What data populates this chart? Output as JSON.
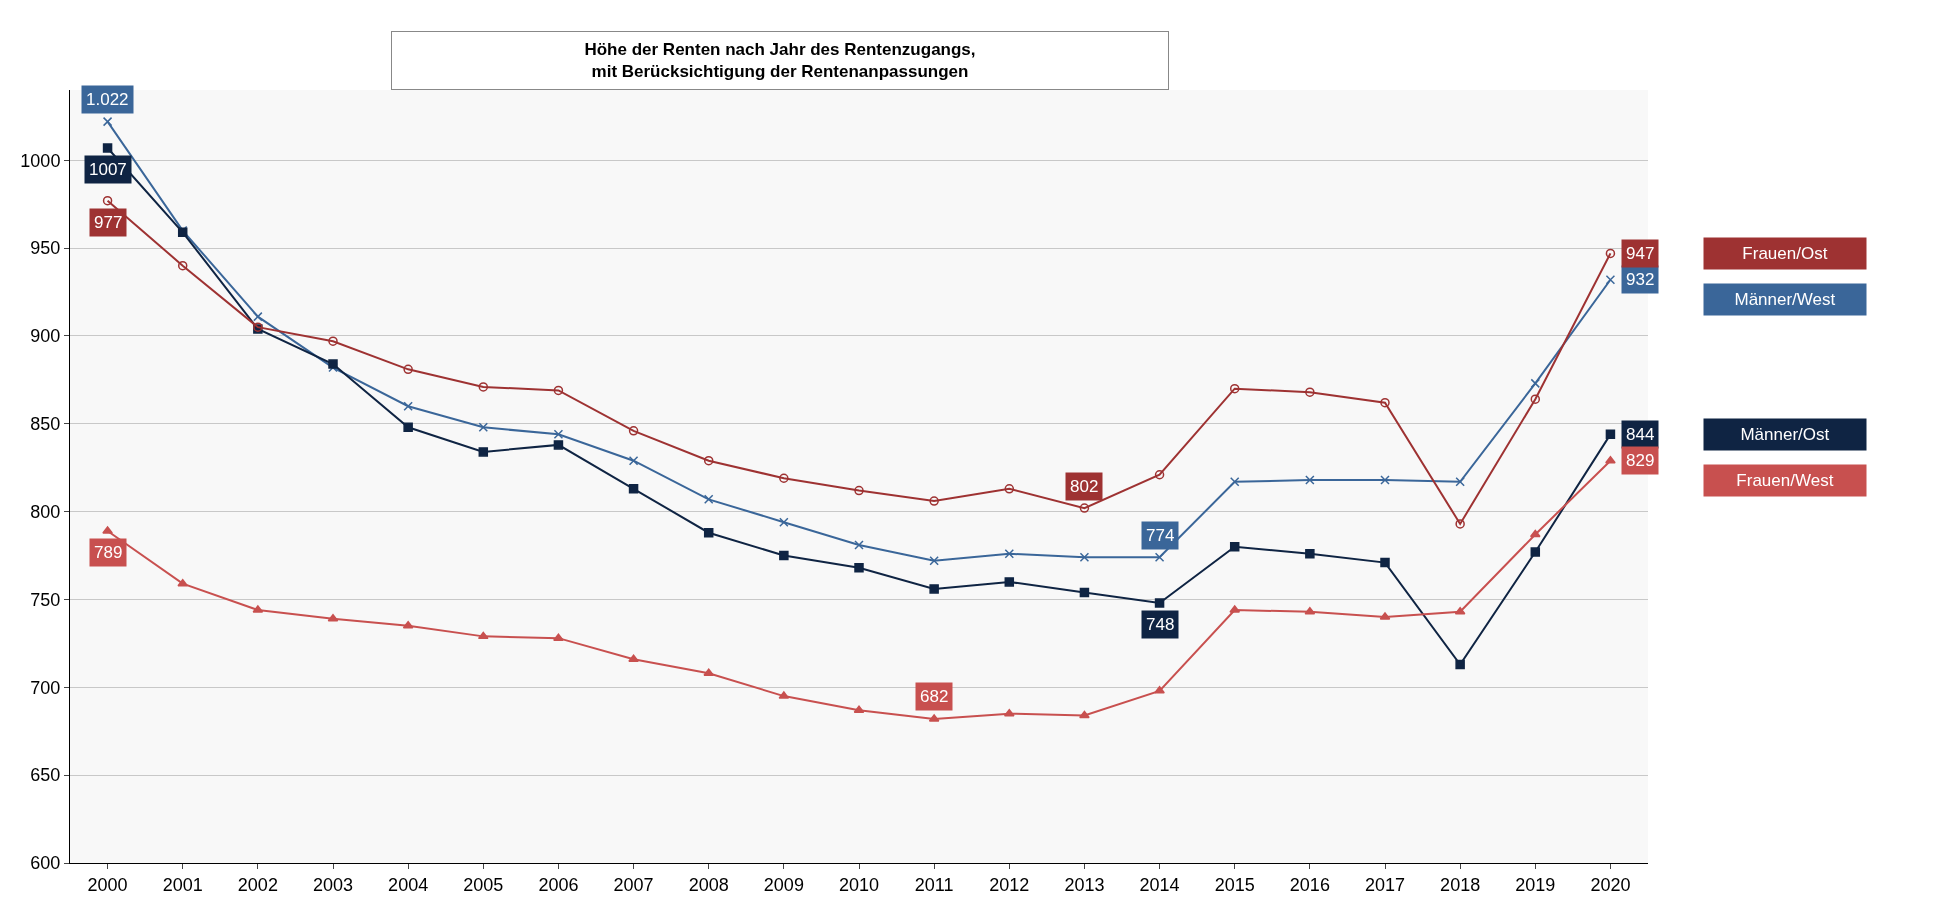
{
  "chart_data": {
    "type": "line",
    "title": "Höhe der Renten nach Jahr des Rentenzugangs,\nmit Berücksichtigung der Rentenanpassungen",
    "categories": [
      "2000",
      "2001",
      "2002",
      "2003",
      "2004",
      "2005",
      "2006",
      "2007",
      "2008",
      "2009",
      "2010",
      "2011",
      "2012",
      "2013",
      "2014",
      "2015",
      "2016",
      "2017",
      "2018",
      "2019",
      "2020"
    ],
    "ylim": [
      600,
      1040
    ],
    "yticks": [
      600,
      650,
      700,
      750,
      800,
      850,
      900,
      950,
      1000
    ],
    "grid": "y",
    "legend": false,
    "line_style": "solid",
    "series": [
      {
        "name": "Männer/West",
        "color": "#3a6699",
        "marker": "cross",
        "values": [
          1022,
          960,
          911,
          882,
          860,
          848,
          844,
          829,
          807,
          794,
          781,
          772,
          776,
          774,
          774,
          817,
          818,
          818,
          817,
          873,
          932
        ],
        "value_labels": [
          "1.022",
          null,
          null,
          null,
          null,
          null,
          null,
          null,
          null,
          null,
          null,
          null,
          null,
          null,
          "774",
          null,
          null,
          null,
          null,
          null,
          "932"
        ]
      },
      {
        "name": "Männer/Ost",
        "color": "#0f2443",
        "marker": "square",
        "values": [
          1007,
          959,
          904,
          884,
          848,
          834,
          838,
          813,
          788,
          775,
          768,
          756,
          760,
          754,
          748,
          780,
          776,
          771,
          713,
          777,
          844
        ],
        "value_labels": [
          "1007",
          null,
          null,
          null,
          null,
          null,
          null,
          null,
          null,
          null,
          null,
          null,
          null,
          null,
          "748",
          null,
          null,
          null,
          null,
          null,
          "844"
        ]
      },
      {
        "name": "Frauen/Ost",
        "color": "#9e3232",
        "marker": "circle",
        "values": [
          977,
          940,
          905,
          897,
          881,
          871,
          869,
          846,
          829,
          819,
          812,
          806,
          813,
          802,
          821,
          870,
          868,
          862,
          793,
          864,
          947
        ],
        "value_labels": [
          "977",
          null,
          null,
          null,
          null,
          null,
          null,
          null,
          null,
          null,
          null,
          null,
          null,
          "802",
          null,
          null,
          null,
          null,
          null,
          null,
          "947"
        ]
      },
      {
        "name": "Frauen/West",
        "color": "#c8504f",
        "marker": "triangle",
        "values": [
          789,
          759,
          744,
          739,
          735,
          729,
          728,
          716,
          708,
          695,
          687,
          682,
          685,
          684,
          698,
          744,
          743,
          740,
          743,
          787,
          829
        ],
        "value_labels": [
          "789",
          null,
          null,
          null,
          null,
          null,
          null,
          null,
          null,
          null,
          null,
          "682",
          null,
          null,
          null,
          null,
          null,
          null,
          null,
          null,
          "829"
        ]
      }
    ]
  }
}
